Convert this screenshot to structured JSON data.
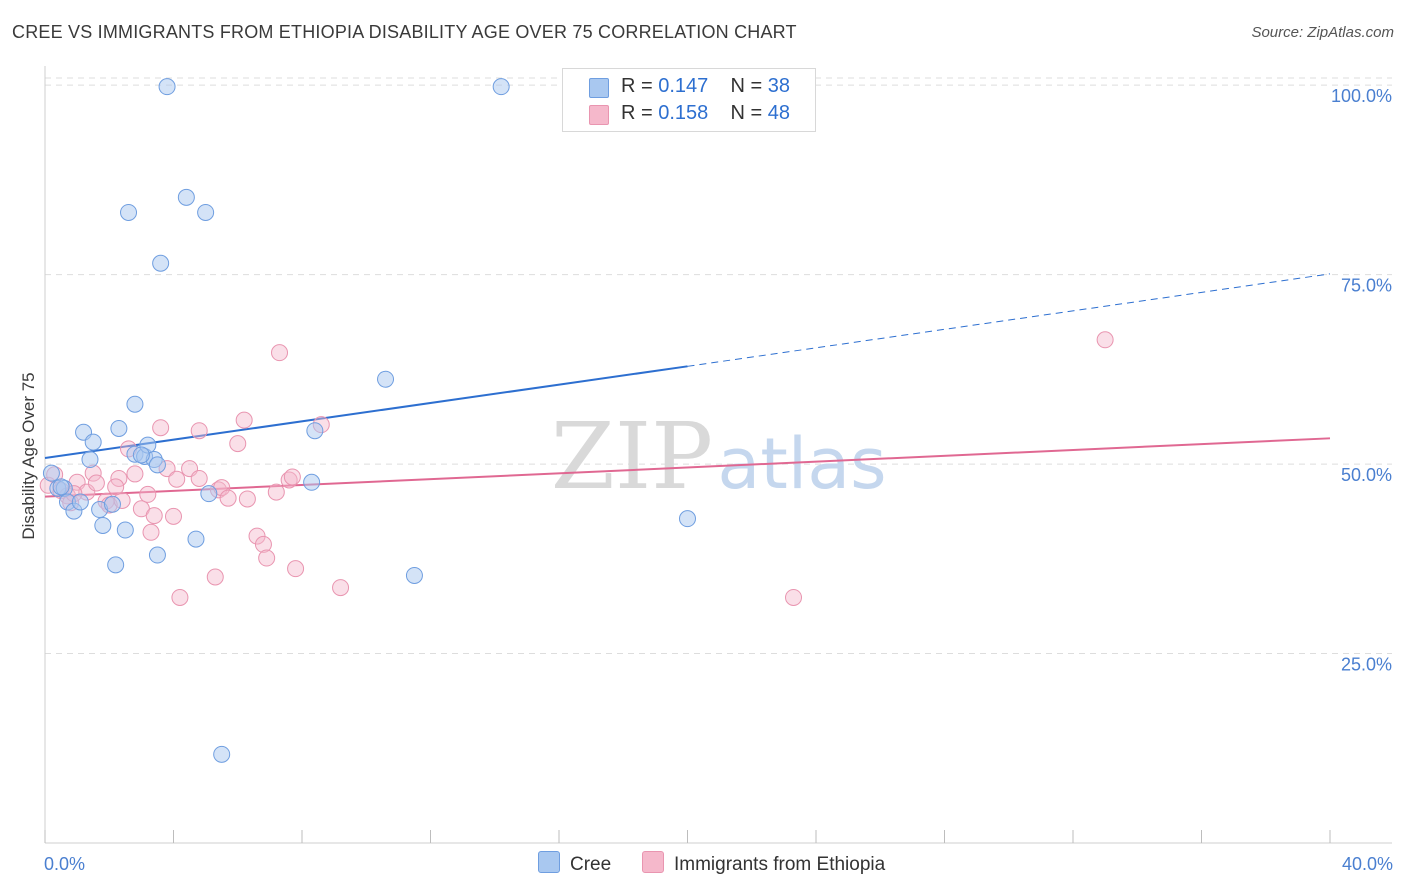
{
  "title": "CREE VS IMMIGRANTS FROM ETHIOPIA DISABILITY AGE OVER 75 CORRELATION CHART",
  "source": "Source: ZipAtlas.com",
  "watermark": {
    "zip": "ZIP",
    "atlas": "atlas"
  },
  "legend": {
    "cree": {
      "r_label": "R = ",
      "r_value": "0.147",
      "n_label": "N = ",
      "n_value": "38"
    },
    "ethiopia": {
      "r_label": "R = ",
      "r_value": "0.158",
      "n_label": "N = ",
      "n_value": "48"
    }
  },
  "bottom_legend": {
    "cree": "Cree",
    "ethiopia": "Immigrants from Ethiopia"
  },
  "colors": {
    "cree_fill": "#a9c8f0",
    "cree_stroke": "#6f9ee0",
    "cree_line": "#2d6fd0",
    "eth_fill": "#f5b8cb",
    "eth_stroke": "#e995b0",
    "eth_line": "#e06892",
    "tick_text": "#4a7fd0",
    "grid": "#dddddd"
  },
  "chart_data": {
    "type": "scatter",
    "title": "CREE VS IMMIGRANTS FROM ETHIOPIA DISABILITY AGE OVER 75 CORRELATION CHART",
    "xlabel": "",
    "ylabel": "Disability Age Over 75",
    "xlim": [
      0,
      40
    ],
    "ylim": [
      0,
      102
    ],
    "x_tick_labels": [
      "0.0%",
      "40.0%"
    ],
    "y_ticks": [
      25,
      50,
      75,
      100
    ],
    "y_tick_labels": [
      "25.0%",
      "50.0%",
      "75.0%",
      "100.0%"
    ],
    "grid": true,
    "series": [
      {
        "name": "Cree",
        "r": 0.147,
        "n": 38,
        "trend": {
          "x_start": 0,
          "y_start": 50.8,
          "x_solid_end": 20,
          "y_solid_end": 62.9,
          "x_end": 40,
          "y_end": 75.1
        },
        "points": [
          [
            0.2,
            48.8
          ],
          [
            0.4,
            46.8
          ],
          [
            0.6,
            46.8
          ],
          [
            0.7,
            45.0
          ],
          [
            0.9,
            43.8
          ],
          [
            1.2,
            54.2
          ],
          [
            1.4,
            50.6
          ],
          [
            1.5,
            52.9
          ],
          [
            1.7,
            44.0
          ],
          [
            1.8,
            41.9
          ],
          [
            2.1,
            44.7
          ],
          [
            2.2,
            36.7
          ],
          [
            2.3,
            54.7
          ],
          [
            2.5,
            41.3
          ],
          [
            2.8,
            51.3
          ],
          [
            2.8,
            57.9
          ],
          [
            3.1,
            51.0
          ],
          [
            3.2,
            52.5
          ],
          [
            3.4,
            50.6
          ],
          [
            3.5,
            49.9
          ],
          [
            3.5,
            38.0
          ],
          [
            3.6,
            76.5
          ],
          [
            3.8,
            99.8
          ],
          [
            4.4,
            85.2
          ],
          [
            4.7,
            40.1
          ],
          [
            5.0,
            83.2
          ],
          [
            5.1,
            46.1
          ],
          [
            2.6,
            83.2
          ],
          [
            5.5,
            11.7
          ],
          [
            8.4,
            54.4
          ],
          [
            8.3,
            47.6
          ],
          [
            10.6,
            61.2
          ],
          [
            11.5,
            35.3
          ],
          [
            14.2,
            99.8
          ],
          [
            20.0,
            42.8
          ],
          [
            0.5,
            47.0
          ],
          [
            1.1,
            45.0
          ],
          [
            3.0,
            51.2
          ]
        ]
      },
      {
        "name": "Immigrants from Ethiopia",
        "r": 0.158,
        "n": 48,
        "trend": {
          "x_start": 0,
          "y_start": 45.7,
          "x_end": 40,
          "y_end": 53.4
        },
        "points": [
          [
            0.1,
            47.2
          ],
          [
            0.3,
            48.6
          ],
          [
            0.5,
            46.5
          ],
          [
            0.7,
            45.8
          ],
          [
            0.8,
            44.9
          ],
          [
            1.0,
            47.6
          ],
          [
            1.3,
            46.3
          ],
          [
            1.5,
            48.8
          ],
          [
            1.6,
            47.5
          ],
          [
            1.9,
            45.1
          ],
          [
            2.0,
            44.6
          ],
          [
            2.3,
            48.1
          ],
          [
            2.4,
            45.2
          ],
          [
            2.6,
            52.0
          ],
          [
            2.8,
            48.7
          ],
          [
            3.0,
            44.1
          ],
          [
            3.2,
            46.0
          ],
          [
            3.3,
            41.0
          ],
          [
            3.4,
            43.2
          ],
          [
            3.6,
            54.8
          ],
          [
            3.8,
            49.4
          ],
          [
            4.0,
            43.1
          ],
          [
            4.1,
            48.0
          ],
          [
            4.2,
            32.4
          ],
          [
            4.5,
            49.4
          ],
          [
            4.8,
            48.1
          ],
          [
            4.8,
            54.4
          ],
          [
            5.3,
            35.1
          ],
          [
            5.4,
            46.6
          ],
          [
            5.5,
            46.9
          ],
          [
            5.7,
            45.5
          ],
          [
            6.0,
            52.7
          ],
          [
            6.2,
            55.8
          ],
          [
            6.3,
            45.4
          ],
          [
            6.6,
            40.5
          ],
          [
            6.8,
            39.4
          ],
          [
            6.9,
            37.6
          ],
          [
            7.2,
            46.3
          ],
          [
            7.3,
            64.7
          ],
          [
            7.6,
            47.9
          ],
          [
            7.7,
            48.3
          ],
          [
            7.8,
            36.2
          ],
          [
            8.6,
            55.2
          ],
          [
            9.2,
            33.7
          ],
          [
            23.3,
            32.4
          ],
          [
            33.0,
            66.4
          ],
          [
            0.9,
            46.1
          ],
          [
            2.2,
            47.0
          ]
        ]
      }
    ]
  }
}
